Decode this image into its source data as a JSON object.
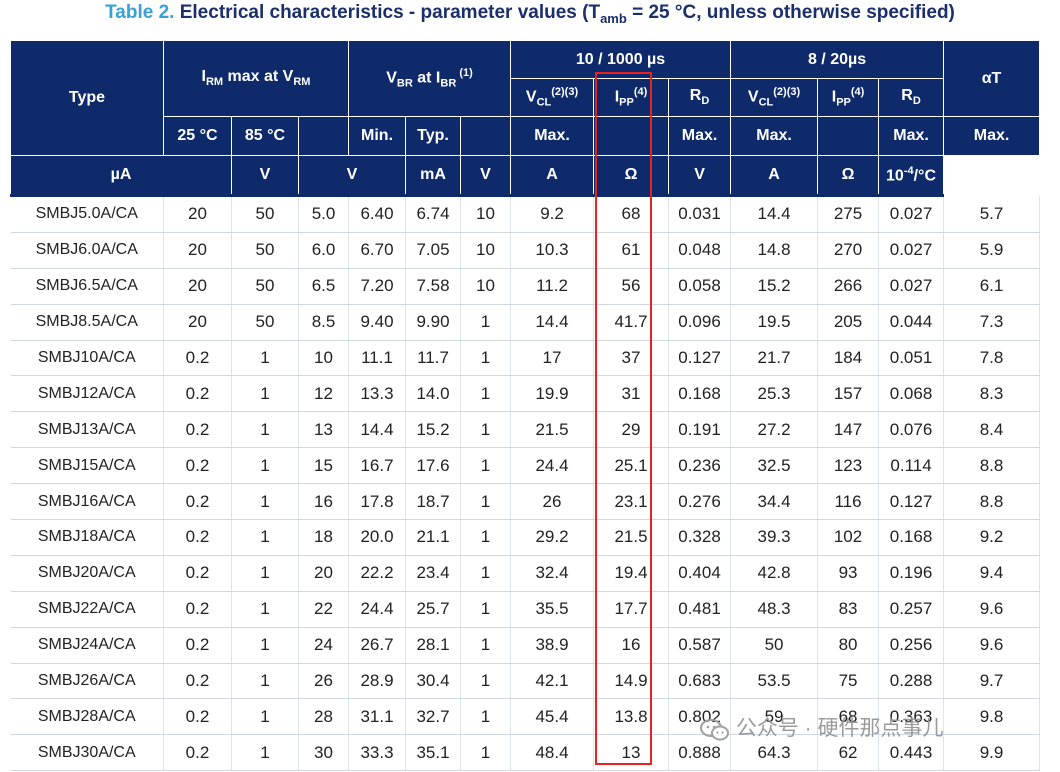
{
  "title": {
    "lead": "Table 2.",
    "text_a": "Electrical characteristics - parameter values (T",
    "sub": "amb",
    "text_b": " = 25 °C, unless otherwise specified)"
  },
  "header": {
    "type": "Type",
    "irm_a": "I",
    "irm_sub1": "RM",
    "irm_b": " max at V",
    "irm_sub2": "RM",
    "vbr_a": "V",
    "vbr_sub1": "BR",
    "vbr_b": " at I",
    "vbr_sub2": "BR",
    "vbr_sup": " (1)",
    "group_1000": "10 / 1000 µs",
    "group_20": "8 / 20µs",
    "alpha": "αT",
    "vcl": "V",
    "vcl_sub": "CL",
    "vcl_sup": "(2)(3)",
    "ipp": "I",
    "ipp_sub": "PP",
    "ipp_sup": "(4)",
    "rd": "R",
    "rd_sub": "D",
    "t25": "25 °C",
    "t85": "85 °C",
    "min": "Min.",
    "typ": "Typ.",
    "max": "Max.",
    "u_ua": "µA",
    "u_v": "V",
    "u_ma": "mA",
    "u_a": "A",
    "u_ohm": "Ω",
    "u_alpha": "10",
    "u_alpha_sup": "-4",
    "u_alpha_tail": "/°C"
  },
  "rows": [
    [
      "SMBJ5.0A/CA",
      "20",
      "50",
      "5.0",
      "6.40",
      "6.74",
      "10",
      "9.2",
      "68",
      "0.031",
      "14.4",
      "275",
      "0.027",
      "5.7"
    ],
    [
      "SMBJ6.0A/CA",
      "20",
      "50",
      "6.0",
      "6.70",
      "7.05",
      "10",
      "10.3",
      "61",
      "0.048",
      "14.8",
      "270",
      "0.027",
      "5.9"
    ],
    [
      "SMBJ6.5A/CA",
      "20",
      "50",
      "6.5",
      "7.20",
      "7.58",
      "10",
      "11.2",
      "56",
      "0.058",
      "15.2",
      "266",
      "0.027",
      "6.1"
    ],
    [
      "SMBJ8.5A/CA",
      "20",
      "50",
      "8.5",
      "9.40",
      "9.90",
      "1",
      "14.4",
      "41.7",
      "0.096",
      "19.5",
      "205",
      "0.044",
      "7.3"
    ],
    [
      "SMBJ10A/CA",
      "0.2",
      "1",
      "10",
      "11.1",
      "11.7",
      "1",
      "17",
      "37",
      "0.127",
      "21.7",
      "184",
      "0.051",
      "7.8"
    ],
    [
      "SMBJ12A/CA",
      "0.2",
      "1",
      "12",
      "13.3",
      "14.0",
      "1",
      "19.9",
      "31",
      "0.168",
      "25.3",
      "157",
      "0.068",
      "8.3"
    ],
    [
      "SMBJ13A/CA",
      "0.2",
      "1",
      "13",
      "14.4",
      "15.2",
      "1",
      "21.5",
      "29",
      "0.191",
      "27.2",
      "147",
      "0.076",
      "8.4"
    ],
    [
      "SMBJ15A/CA",
      "0.2",
      "1",
      "15",
      "16.7",
      "17.6",
      "1",
      "24.4",
      "25.1",
      "0.236",
      "32.5",
      "123",
      "0.114",
      "8.8"
    ],
    [
      "SMBJ16A/CA",
      "0.2",
      "1",
      "16",
      "17.8",
      "18.7",
      "1",
      "26",
      "23.1",
      "0.276",
      "34.4",
      "116",
      "0.127",
      "8.8"
    ],
    [
      "SMBJ18A/CA",
      "0.2",
      "1",
      "18",
      "20.0",
      "21.1",
      "1",
      "29.2",
      "21.5",
      "0.328",
      "39.3",
      "102",
      "0.168",
      "9.2"
    ],
    [
      "SMBJ20A/CA",
      "0.2",
      "1",
      "20",
      "22.2",
      "23.4",
      "1",
      "32.4",
      "19.4",
      "0.404",
      "42.8",
      "93",
      "0.196",
      "9.4"
    ],
    [
      "SMBJ22A/CA",
      "0.2",
      "1",
      "22",
      "24.4",
      "25.7",
      "1",
      "35.5",
      "17.7",
      "0.481",
      "48.3",
      "83",
      "0.257",
      "9.6"
    ],
    [
      "SMBJ24A/CA",
      "0.2",
      "1",
      "24",
      "26.7",
      "28.1",
      "1",
      "38.9",
      "16",
      "0.587",
      "50",
      "80",
      "0.256",
      "9.6"
    ],
    [
      "SMBJ26A/CA",
      "0.2",
      "1",
      "26",
      "28.9",
      "30.4",
      "1",
      "42.1",
      "14.9",
      "0.683",
      "53.5",
      "75",
      "0.288",
      "9.7"
    ],
    [
      "SMBJ28A/CA",
      "0.2",
      "1",
      "28",
      "31.1",
      "32.7",
      "1",
      "45.4",
      "13.8",
      "0.802",
      "59",
      "68",
      "0.363",
      "9.8"
    ],
    [
      "SMBJ30A/CA",
      "0.2",
      "1",
      "30",
      "33.3",
      "35.1",
      "1",
      "48.4",
      "13",
      "0.888",
      "64.3",
      "62",
      "0.443",
      "9.9"
    ]
  ],
  "watermark": "公众号 · 硬件那点事儿",
  "colors": {
    "header_bg": "#0e2a6b",
    "title_lead": "#3aa0d8",
    "highlight_box": "#e52421"
  }
}
